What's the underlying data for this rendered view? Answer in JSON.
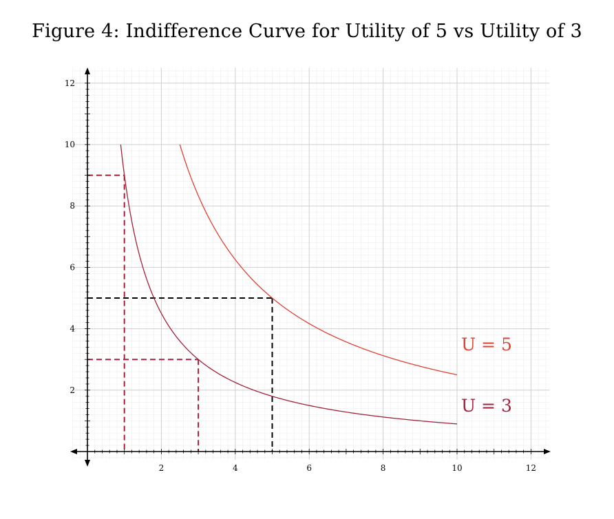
{
  "chart_data": {
    "type": "line",
    "title": "Figure 4: Indifference Curve for Utility of 5 vs Utility of 3",
    "xlabel": "",
    "ylabel": "",
    "xlim": [
      -0.4,
      12.5
    ],
    "ylim": [
      -0.4,
      12.5
    ],
    "x_ticks": [
      2,
      4,
      6,
      8,
      10,
      12
    ],
    "y_ticks": [
      2,
      4,
      6,
      8,
      10,
      12
    ],
    "grid": true,
    "minor_grid_step": 0.2,
    "series": [
      {
        "name": "U = 5",
        "function": "y = 25 / x",
        "x_range": [
          2.5,
          10
        ],
        "color": "#e0402f"
      },
      {
        "name": "U = 3",
        "function": "y = 9 / x",
        "x_range": [
          0.9,
          10
        ],
        "color": "#a3203a"
      }
    ],
    "guides": [
      {
        "x": 1,
        "y": 9,
        "color": "#a3203a"
      },
      {
        "x": 3,
        "y": 3,
        "color": "#a3203a"
      },
      {
        "x": 5,
        "y": 5,
        "color": "#000000"
      }
    ],
    "annotations": [
      {
        "text": "U = 5",
        "x": 10.8,
        "y": 3.3,
        "color": "#e0402f"
      },
      {
        "text": "U = 3",
        "x": 10.8,
        "y": 1.3,
        "color": "#a3203a"
      }
    ]
  }
}
